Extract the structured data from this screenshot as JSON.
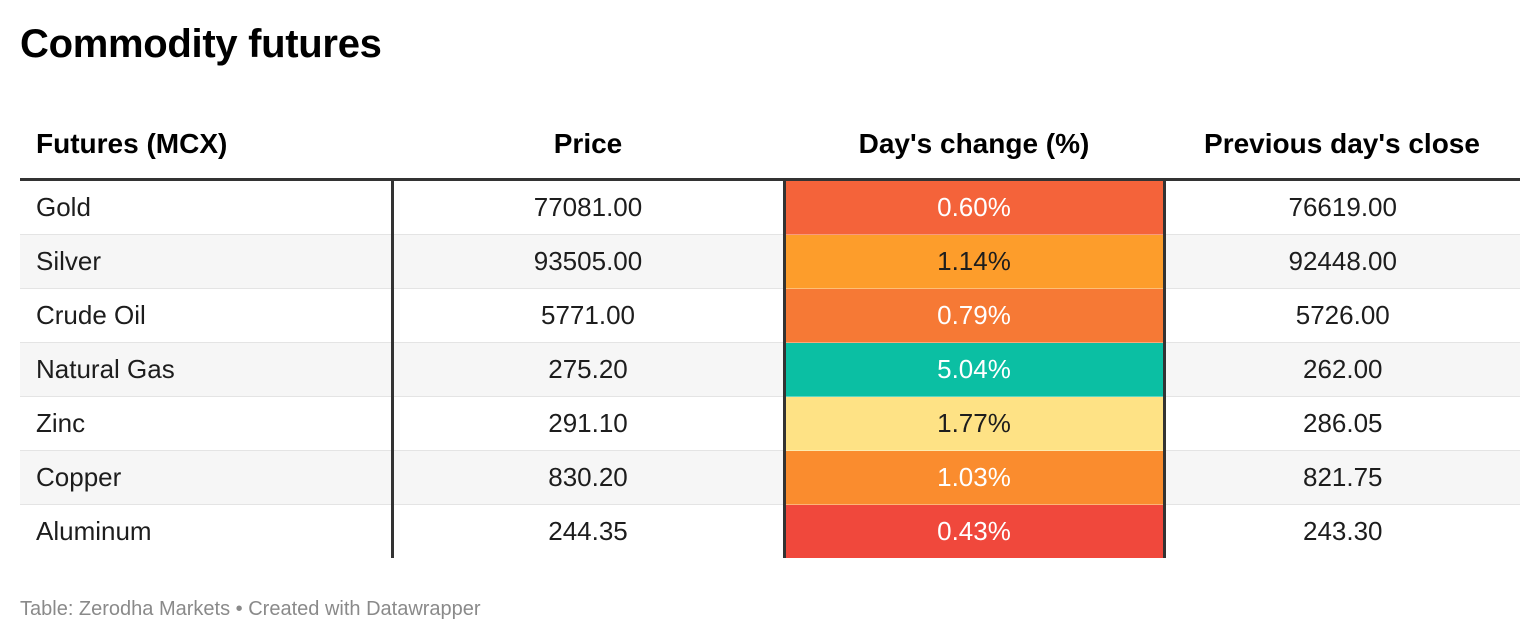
{
  "title": "Commodity futures",
  "footer": {
    "source": "Table: Zerodha Markets",
    "separator": " • ",
    "credit": "Created with Datawrapper"
  },
  "chart_data": {
    "type": "table",
    "title": "Commodity futures",
    "columns": [
      "Futures (MCX)",
      "Price",
      "Day's change (%)",
      "Previous day's close"
    ],
    "rows": [
      {
        "name": "Gold",
        "price": "77081.00",
        "change": "0.60%",
        "change_value": 0.6,
        "prev_close": "76619.00",
        "change_color": "#f4633a",
        "change_text_color": "#ffffff"
      },
      {
        "name": "Silver",
        "price": "93505.00",
        "change": "1.14%",
        "change_value": 1.14,
        "prev_close": "92448.00",
        "change_color": "#fd9d2b",
        "change_text_color": "#1d1d1d"
      },
      {
        "name": "Crude Oil",
        "price": "5771.00",
        "change": "0.79%",
        "change_value": 0.79,
        "prev_close": "5726.00",
        "change_color": "#f67935",
        "change_text_color": "#ffffff"
      },
      {
        "name": "Natural Gas",
        "price": "275.20",
        "change": "5.04%",
        "change_value": 5.04,
        "prev_close": "262.00",
        "change_color": "#0bbfa3",
        "change_text_color": "#ffffff"
      },
      {
        "name": "Zinc",
        "price": "291.10",
        "change": "1.77%",
        "change_value": 1.77,
        "prev_close": "286.05",
        "change_color": "#fee285",
        "change_text_color": "#1d1d1d"
      },
      {
        "name": "Copper",
        "price": "830.20",
        "change": "1.03%",
        "change_value": 1.03,
        "prev_close": "821.75",
        "change_color": "#fa8c2e",
        "change_text_color": "#ffffff"
      },
      {
        "name": "Aluminum",
        "price": "244.35",
        "change": "0.43%",
        "change_value": 0.43,
        "prev_close": "243.30",
        "change_color": "#f0483c",
        "change_text_color": "#ffffff"
      }
    ]
  }
}
